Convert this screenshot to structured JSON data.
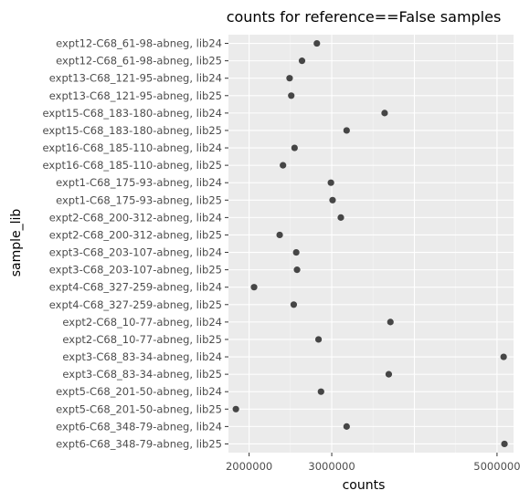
{
  "chart_data": {
    "type": "scatter",
    "title": "counts for reference==False samples",
    "xlabel": "counts",
    "ylabel": "sample_lib",
    "xlim": [
      1750000,
      5200000
    ],
    "xticks": [
      2000000,
      3000000,
      5000000
    ],
    "xtick_labels": [
      "2000000",
      "3000000",
      "5000000"
    ],
    "grid": true,
    "categories": [
      "expt12-C68_61-98-abneg, lib24",
      "expt12-C68_61-98-abneg, lib25",
      "expt13-C68_121-95-abneg, lib24",
      "expt13-C68_121-95-abneg, lib25",
      "expt15-C68_183-180-abneg, lib24",
      "expt15-C68_183-180-abneg, lib25",
      "expt16-C68_185-110-abneg, lib24",
      "expt16-C68_185-110-abneg, lib25",
      "expt1-C68_175-93-abneg, lib24",
      "expt1-C68_175-93-abneg, lib25",
      "expt2-C68_200-312-abneg, lib24",
      "expt2-C68_200-312-abneg, lib25",
      "expt3-C68_203-107-abneg, lib24",
      "expt3-C68_203-107-abneg, lib25",
      "expt4-C68_327-259-abneg, lib24",
      "expt4-C68_327-259-abneg, lib25",
      "expt2-C68_10-77-abneg, lib24",
      "expt2-C68_10-77-abneg, lib25",
      "expt3-C68_83-34-abneg, lib24",
      "expt3-C68_83-34-abneg, lib25",
      "expt5-C68_201-50-abneg, lib24",
      "expt5-C68_201-50-abneg, lib25",
      "expt6-C68_348-79-abneg, lib24",
      "expt6-C68_348-79-abneg, lib25"
    ],
    "values": [
      2820000,
      2640000,
      2490000,
      2510000,
      3640000,
      3180000,
      2550000,
      2410000,
      2990000,
      3010000,
      3110000,
      2370000,
      2570000,
      2580000,
      2060000,
      2540000,
      3710000,
      2840000,
      5080000,
      3690000,
      2870000,
      1840000,
      3180000,
      5090000
    ]
  },
  "colors": {
    "panel": "#ebebeb",
    "grid": "#ffffff",
    "point": "#333333",
    "tick_text": "#4d4d4d"
  }
}
